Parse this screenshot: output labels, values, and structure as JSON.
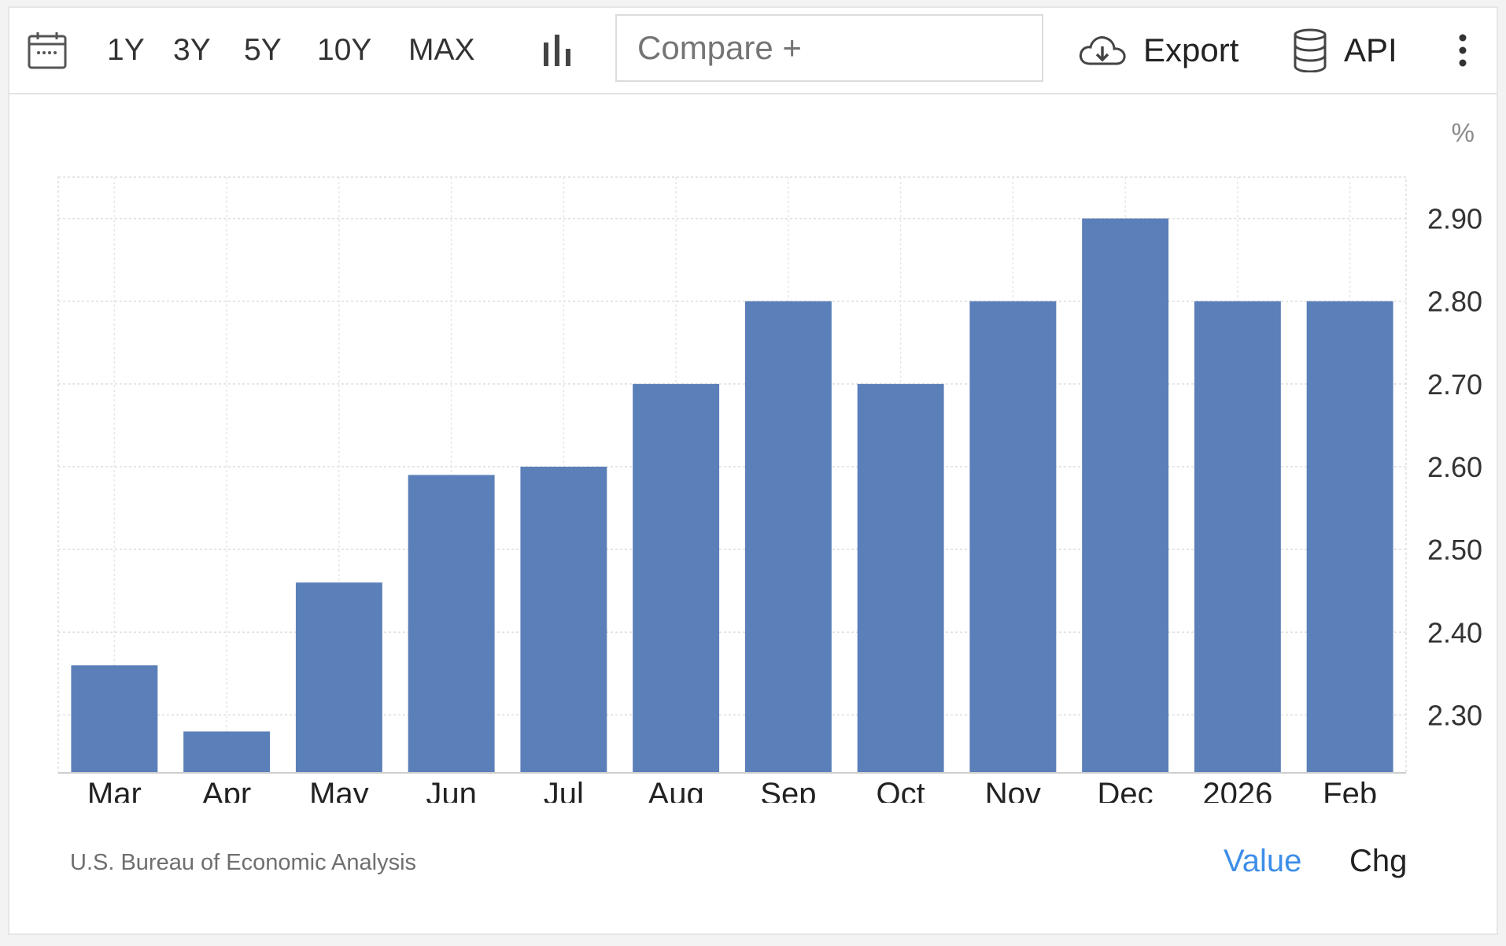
{
  "toolbar": {
    "ranges": [
      "1Y",
      "3Y",
      "5Y",
      "10Y",
      "MAX"
    ],
    "compare_placeholder": "Compare +",
    "export_label": "Export",
    "api_label": "API",
    "icons": {
      "calendar": "calendar-icon",
      "chart_type": "bar-chart-icon",
      "export": "cloud-download-icon",
      "api": "database-icon",
      "more": "vertical-dots-icon"
    }
  },
  "chart": {
    "unit": "%",
    "source": "U.S. Bureau of Economic Analysis",
    "toggle_value": "Value",
    "toggle_chg": "Chg",
    "bar_color": "#5b7fb8",
    "active_color": "#3d8ee8"
  },
  "chart_data": {
    "type": "bar",
    "categories": [
      "Mar",
      "Apr",
      "May",
      "Jun",
      "Jul",
      "Aug",
      "Sep",
      "Oct",
      "Nov",
      "Dec",
      "2026",
      "Feb"
    ],
    "values": [
      2.36,
      2.28,
      2.46,
      2.59,
      2.6,
      2.7,
      2.8,
      2.7,
      2.8,
      2.9,
      2.8,
      2.8
    ],
    "yticks": [
      "2.30",
      "2.40",
      "2.50",
      "2.60",
      "2.70",
      "2.80",
      "2.90"
    ],
    "ylim": [
      2.23,
      2.95
    ],
    "grid": true
  }
}
